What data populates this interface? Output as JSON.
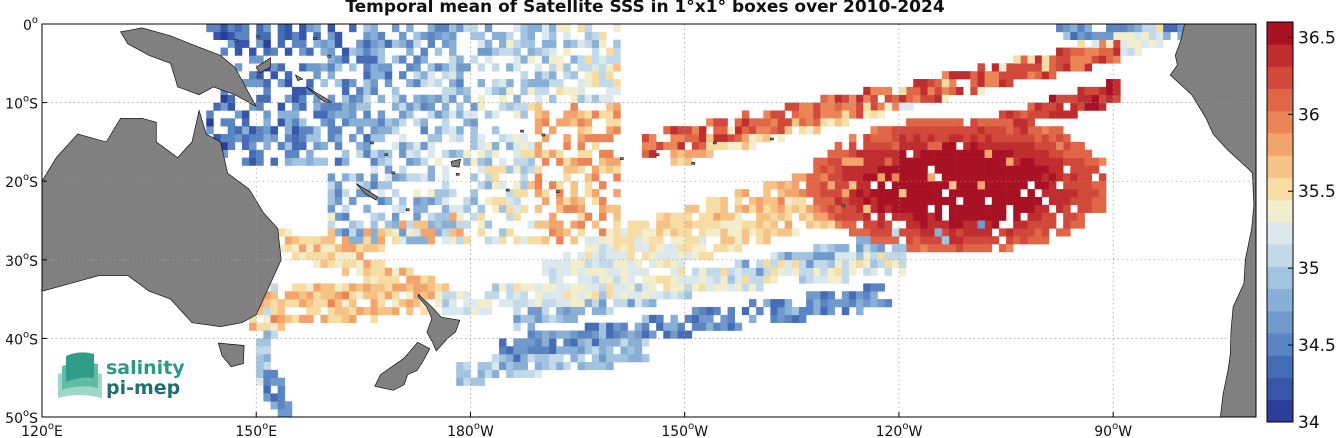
{
  "title": "Temporal mean of Satellite SSS in 1°x1° boxes over 2010-2024",
  "map": {
    "lon_range": [
      120,
      290
    ],
    "lat_range": [
      -50,
      0
    ],
    "x_ticks": [
      {
        "lon": 120,
        "label": "120°E"
      },
      {
        "lon": 150,
        "label": "150°E"
      },
      {
        "lon": 180,
        "label": "180°W"
      },
      {
        "lon": 210,
        "label": "150°W"
      },
      {
        "lon": 240,
        "label": "120°W"
      },
      {
        "lon": 270,
        "label": "90°W"
      }
    ],
    "y_ticks": [
      {
        "lat": 0,
        "label": "0°"
      },
      {
        "lat": -10,
        "label": "10°S"
      },
      {
        "lat": -20,
        "label": "20°S"
      },
      {
        "lat": -30,
        "label": "30°S"
      },
      {
        "lat": -40,
        "label": "40°S"
      },
      {
        "lat": -50,
        "label": "50°S"
      }
    ],
    "grid": true
  },
  "colorbar": {
    "min": 34,
    "max": 36.6,
    "ticks": [
      "34",
      "34.5",
      "35",
      "35.5",
      "36",
      "36.5"
    ],
    "tick_values": [
      34,
      34.5,
      35,
      35.5,
      36,
      36.5
    ],
    "colors": [
      "#2b3f9a",
      "#3656a9",
      "#466cb6",
      "#5a84c2",
      "#7099cc",
      "#88afd6",
      "#a3c4e0",
      "#c2d9ea",
      "#dbe9ee",
      "#f2edca",
      "#f7dca3",
      "#f6c285",
      "#f2a46c",
      "#eb8558",
      "#e06647",
      "#d1493a",
      "#bf2d2f",
      "#a91225"
    ]
  },
  "land_color": "#808080",
  "logo": {
    "line1": "salinity",
    "line2": "pi-mep"
  }
}
